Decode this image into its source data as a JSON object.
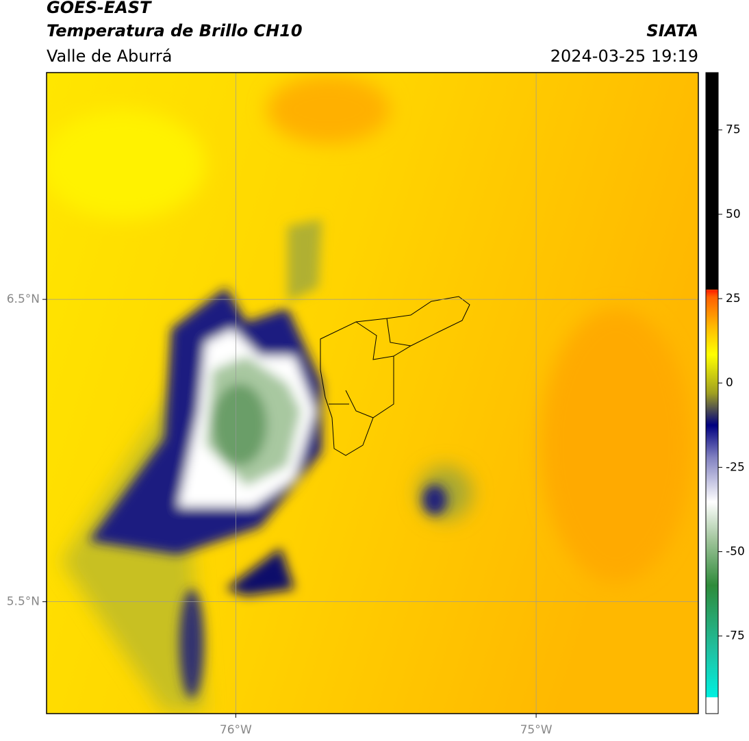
{
  "header": {
    "satellite": "GOES-EAST",
    "product": "Temperatura de Brillo CH10",
    "region": "Valle de Aburrá",
    "organization": "SIATA",
    "datetime": "2024-03-25 19:19"
  },
  "map": {
    "xlim": [
      -76.63,
      -74.46
    ],
    "ylim": [
      5.13,
      7.25
    ],
    "xticks": [
      {
        "value": -76,
        "label": "76°W"
      },
      {
        "value": -75,
        "label": "75°W"
      }
    ],
    "yticks": [
      {
        "value": 6.5,
        "label": "6.5°N"
      },
      {
        "value": 5.5,
        "label": "5.5°N"
      }
    ],
    "grid": true
  },
  "colorbar": {
    "lim": [
      -98,
      92
    ],
    "ticks": [
      75,
      50,
      25,
      0,
      -25,
      -50,
      -75
    ]
  }
}
